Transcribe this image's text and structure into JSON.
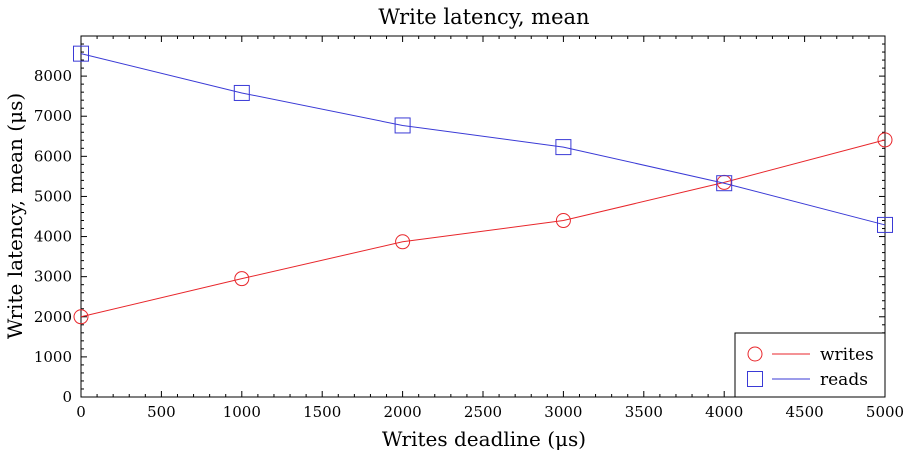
{
  "chart_data": {
    "type": "line",
    "title": "Write latency, mean",
    "xlabel": "Writes deadline (μs)",
    "ylabel": "Write latency, mean (μs)",
    "x": [
      0,
      1000,
      2000,
      3000,
      4000,
      5000
    ],
    "xlim": [
      0,
      5000
    ],
    "ylim": [
      0,
      9000
    ],
    "xticks": [
      0,
      500,
      1000,
      1500,
      2000,
      2500,
      3000,
      3500,
      4000,
      4500,
      5000
    ],
    "yticks": [
      0,
      1000,
      2000,
      3000,
      4000,
      5000,
      6000,
      7000,
      8000
    ],
    "grid": false,
    "legend_position": "bottom-right",
    "series": [
      {
        "name": "writes",
        "marker": "circle",
        "color": "#e8262b",
        "values": [
          2000,
          2950,
          3870,
          4400,
          5350,
          6410
        ]
      },
      {
        "name": "reads",
        "marker": "square",
        "color": "#3a3ad6",
        "values": [
          8560,
          7580,
          6770,
          6230,
          5330,
          4290
        ]
      }
    ]
  }
}
